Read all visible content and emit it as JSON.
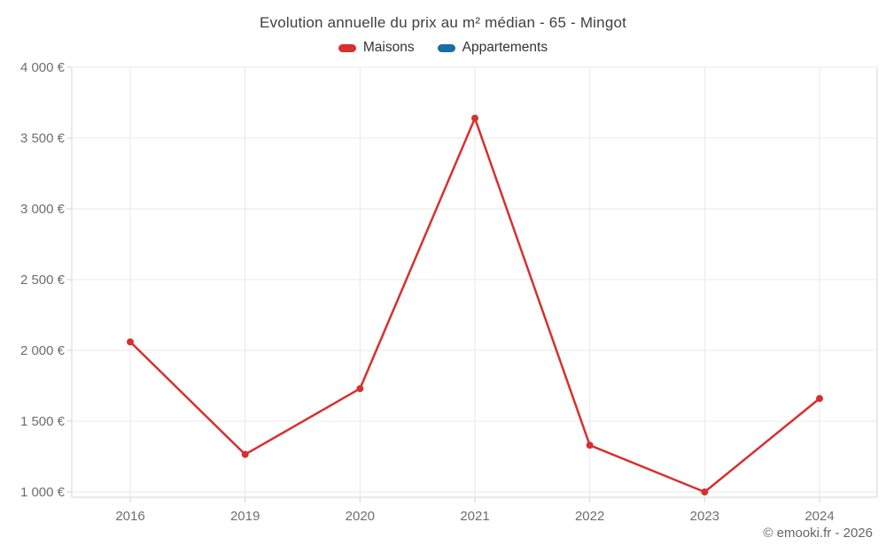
{
  "header": {
    "title": "Evolution annuelle du prix au m² médian - 65 - Mingot"
  },
  "legend": {
    "items": [
      {
        "label": "Maisons",
        "color": "#d7302f"
      },
      {
        "label": "Appartements",
        "color": "#1a6da3"
      }
    ]
  },
  "chart_data": {
    "type": "line",
    "title": "Evolution annuelle du prix au m² médian - 65 - Mingot",
    "categories": [
      "2016",
      "2019",
      "2020",
      "2021",
      "2022",
      "2023",
      "2024"
    ],
    "series": [
      {
        "name": "Maisons",
        "color": "#d7302f",
        "values": [
          2060,
          1265,
          1730,
          3640,
          1330,
          1000,
          1660
        ]
      },
      {
        "name": "Appartements",
        "color": "#1a6da3",
        "values": []
      }
    ],
    "xlabel": "",
    "ylabel": "",
    "ylim": [
      1000,
      4000
    ],
    "y_tick_step": 500,
    "y_ticks": [
      "4 000 €",
      "3 500 €",
      "3 000 €",
      "2 500 €",
      "2 000 €",
      "1 500 €",
      "1 000 €"
    ],
    "grid": true,
    "legend_position": "top",
    "grid_color": "#e8e8e8",
    "axis_color": "#d6d6d6",
    "currency": "€"
  },
  "footer": {
    "copyright": "© emooki.fr - 2026"
  }
}
